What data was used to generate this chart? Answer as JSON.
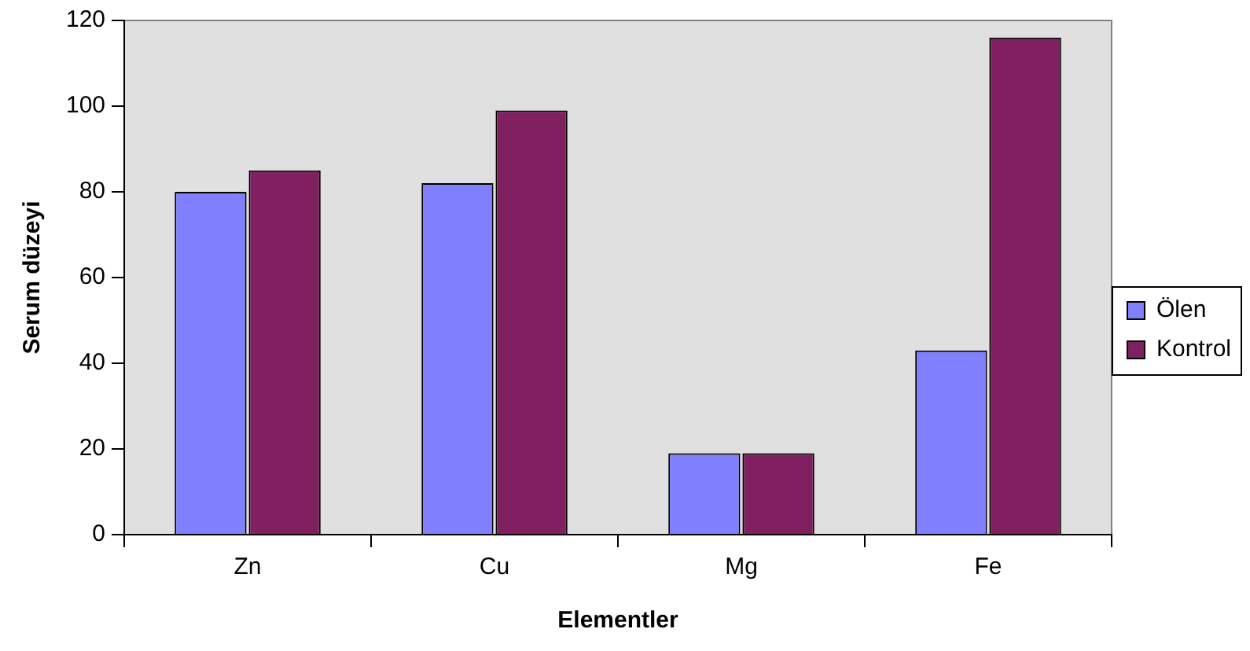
{
  "chart_data": {
    "type": "bar",
    "xlabel": "Elementler",
    "ylabel": "Serum düzeyi",
    "categories": [
      "Zn",
      "Cu",
      "Mg",
      "Fe"
    ],
    "series": [
      {
        "name": "Ölen",
        "color": "#8080ff",
        "values": [
          80,
          82,
          19,
          43
        ]
      },
      {
        "name": "Kontrol",
        "color": "#802060",
        "values": [
          85,
          99,
          19,
          116
        ]
      }
    ],
    "ylim": [
      0,
      120
    ],
    "yticks": [
      0,
      20,
      40,
      60,
      80,
      100,
      120
    ],
    "grid": false,
    "legend": "right"
  }
}
